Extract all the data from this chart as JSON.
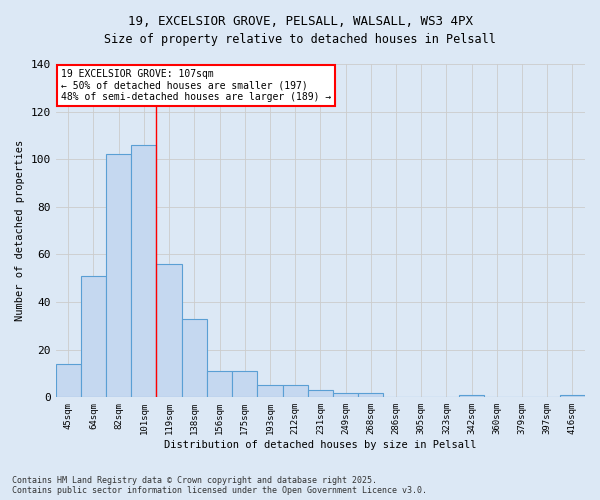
{
  "title_line1": "19, EXCELSIOR GROVE, PELSALL, WALSALL, WS3 4PX",
  "title_line2": "Size of property relative to detached houses in Pelsall",
  "xlabel": "Distribution of detached houses by size in Pelsall",
  "ylabel": "Number of detached properties",
  "categories": [
    "45sqm",
    "64sqm",
    "82sqm",
    "101sqm",
    "119sqm",
    "138sqm",
    "156sqm",
    "175sqm",
    "193sqm",
    "212sqm",
    "231sqm",
    "249sqm",
    "268sqm",
    "286sqm",
    "305sqm",
    "323sqm",
    "342sqm",
    "360sqm",
    "379sqm",
    "397sqm",
    "416sqm"
  ],
  "values": [
    14,
    51,
    102,
    106,
    56,
    33,
    11,
    11,
    5,
    5,
    3,
    2,
    2,
    0,
    0,
    0,
    1,
    0,
    0,
    0,
    1
  ],
  "bar_color": "#c5d8f0",
  "bar_edge_color": "#5a9fd4",
  "red_line_x": 3.5,
  "annotation_text": "19 EXCELSIOR GROVE: 107sqm\n← 50% of detached houses are smaller (197)\n48% of semi-detached houses are larger (189) →",
  "annotation_box_color": "white",
  "annotation_box_edge_color": "red",
  "ylim": [
    0,
    140
  ],
  "yticks": [
    0,
    20,
    40,
    60,
    80,
    100,
    120,
    140
  ],
  "grid_color": "#cccccc",
  "background_color": "#dce8f5",
  "footer_text": "Contains HM Land Registry data © Crown copyright and database right 2025.\nContains public sector information licensed under the Open Government Licence v3.0.",
  "figsize": [
    6.0,
    5.0
  ],
  "dpi": 100
}
